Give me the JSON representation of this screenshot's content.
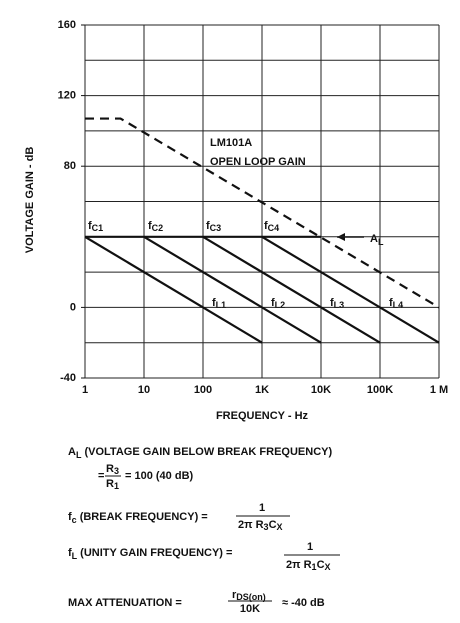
{
  "chart_data": {
    "type": "line",
    "ylabel": "VOLTAGE GAIN - dB",
    "xlabel": "FREQUENCY - Hz",
    "xscale": "log",
    "xlim": [
      1,
      1000000
    ],
    "ylim": [
      -40,
      160
    ],
    "xticks": [
      1,
      10,
      100,
      {
        "value": 1000,
        "label": "1K"
      },
      {
        "value": 10000,
        "label": "10K"
      },
      {
        "value": 100000,
        "label": "100K"
      },
      {
        "value": 1000000,
        "label": "1 M"
      }
    ],
    "yticks": [
      160,
      120,
      80,
      0,
      -40
    ],
    "ygrid": [
      160,
      140,
      120,
      100,
      80,
      60,
      40,
      20,
      0,
      -20,
      -40
    ],
    "grid": true,
    "color": "#111111",
    "series": [
      {
        "x": [
          1,
          4,
          1000000
        ],
        "values": [
          107,
          107,
          0
        ],
        "dashed": true
      },
      {
        "x": [
          1,
          10000
        ],
        "values": [
          40,
          40
        ]
      },
      {
        "x": [
          1,
          1000
        ],
        "values": [
          40,
          -20
        ]
      },
      {
        "x": [
          10,
          10000
        ],
        "values": [
          40,
          -20
        ]
      },
      {
        "x": [
          100,
          100000
        ],
        "values": [
          40,
          -20
        ]
      },
      {
        "x": [
          1000,
          1000000
        ],
        "values": [
          40,
          -20
        ]
      }
    ],
    "annotations": {
      "open_loop": [
        "LM101A",
        "OPEN LOOP GAIN"
      ],
      "al": [
        "A",
        "L"
      ],
      "fc": [
        [
          "f",
          "C1"
        ],
        [
          "f",
          "C2"
        ],
        [
          "f",
          "C3"
        ],
        [
          "f",
          "C4"
        ]
      ],
      "fl": [
        [
          "f",
          "L1"
        ],
        [
          "f",
          "L2"
        ],
        [
          "f",
          "L3"
        ],
        [
          "f",
          "L4"
        ]
      ]
    }
  },
  "formulas": [
    [
      "A",
      "L",
      "(VOLTAGE GAIN BELOW BREAK FREQUENCY)"
    ],
    [
      "=",
      "R",
      "3",
      "R",
      "1",
      "= 100 (40 dB)"
    ],
    [
      "f",
      "c",
      "(BREAK FREQUENCY) =",
      "1",
      "2π R",
      "3",
      "C",
      "X"
    ],
    [
      "f",
      "L",
      "(UNITY GAIN FREQUENCY) =",
      "1",
      "2π R",
      "1",
      "C",
      "X"
    ],
    [
      "MAX ATTENUATION =",
      "r",
      "DS(on)",
      "10K",
      "≈ -40 dB"
    ]
  ]
}
